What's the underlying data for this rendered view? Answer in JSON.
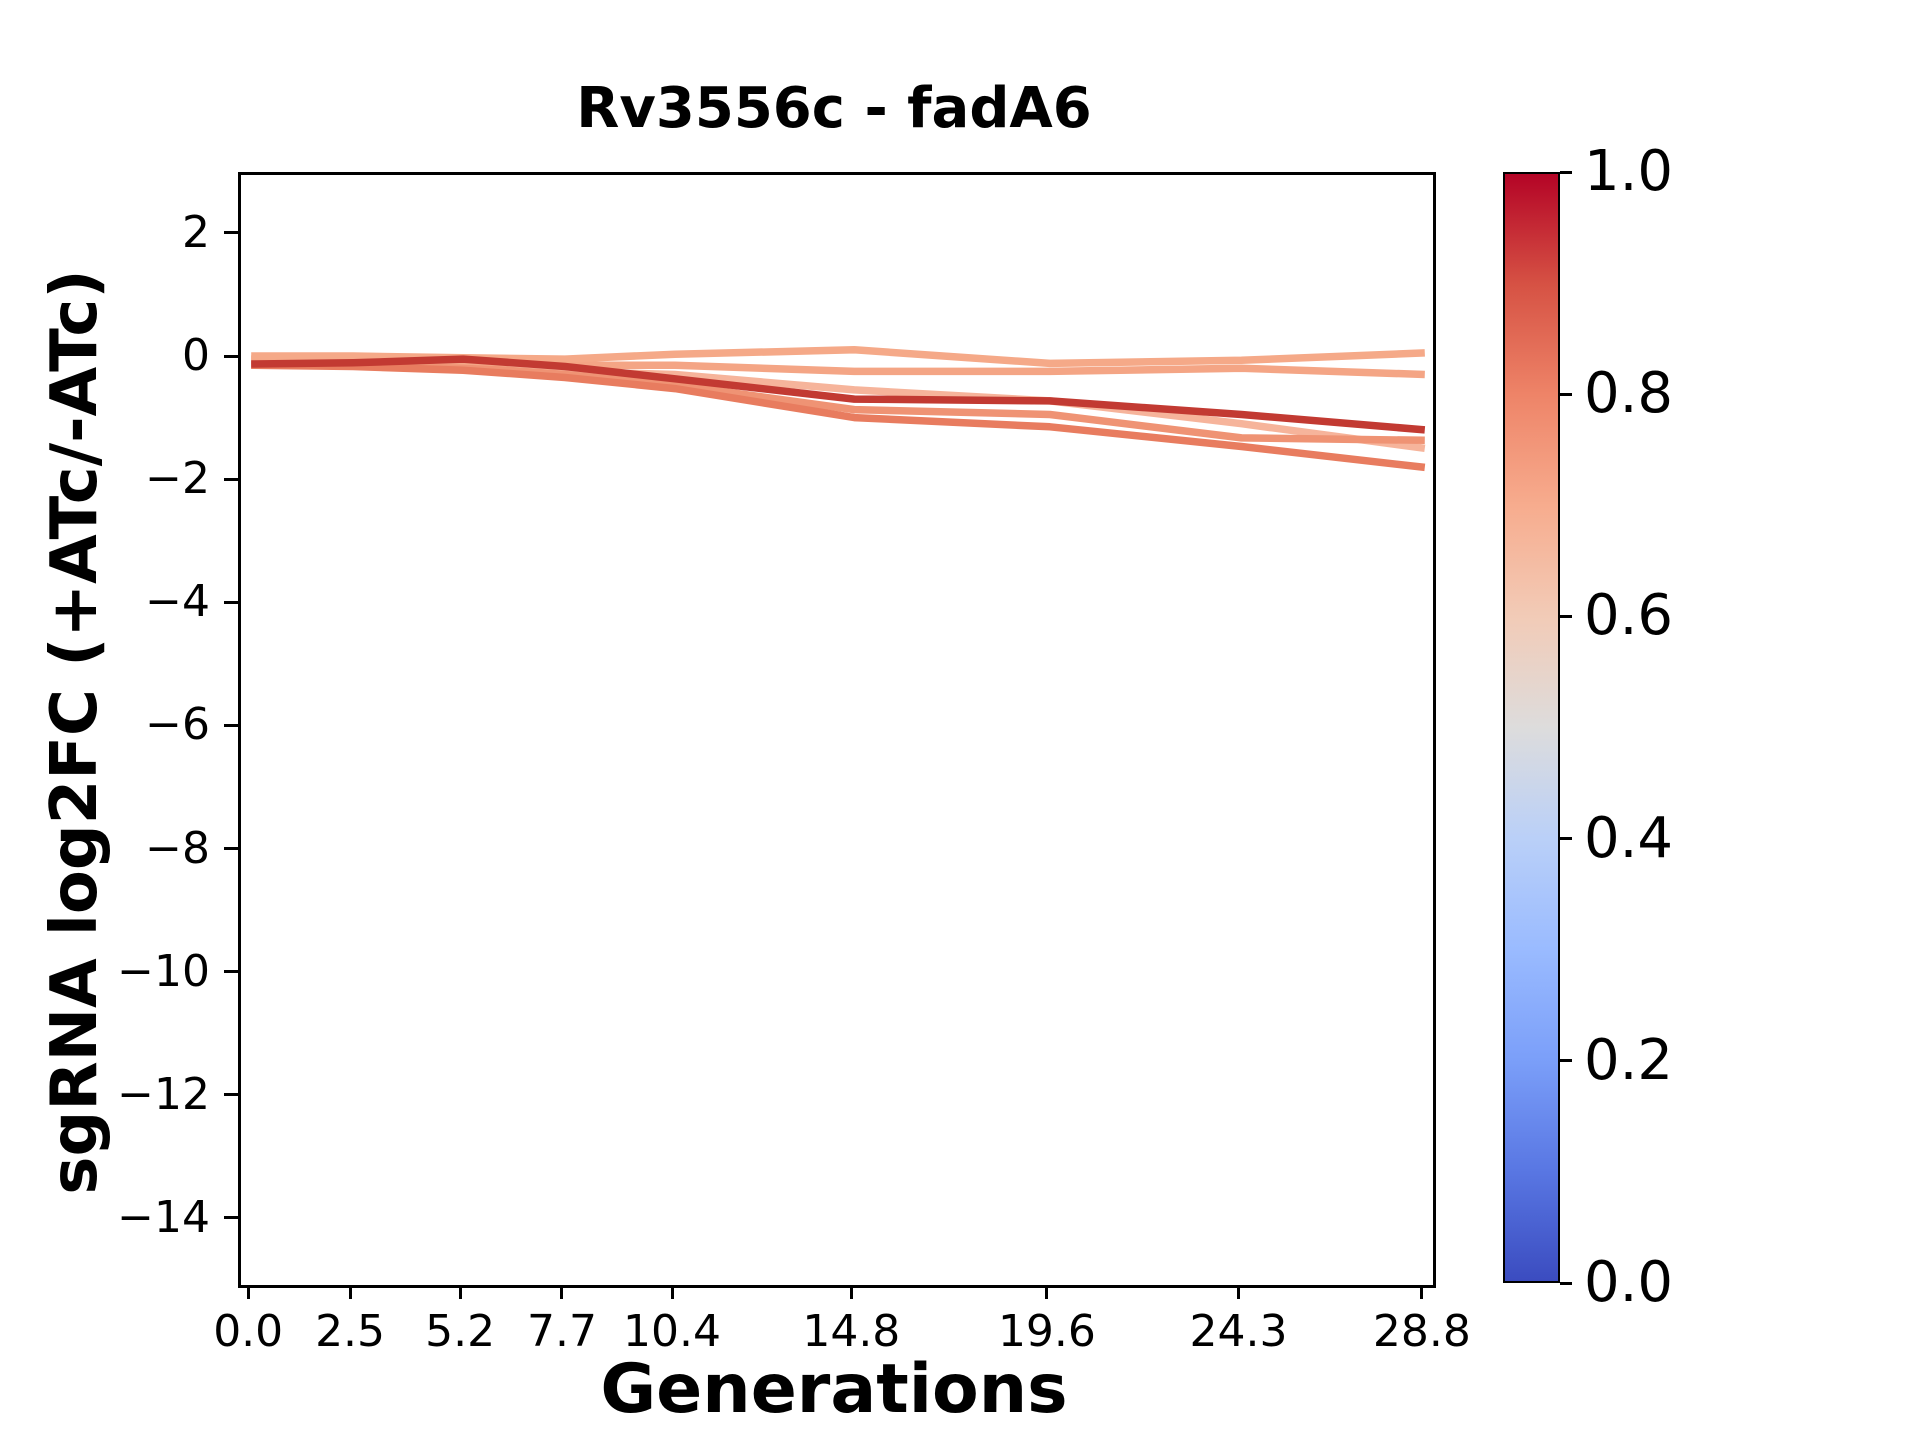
{
  "title": "Rv3556c - fadA6",
  "xlabel": "Generations",
  "ylabel": "sgRNA log2FC (+ATc/-ATc)",
  "chart_data": {
    "type": "line",
    "title": "Rv3556c - fadA6",
    "xlabel": "Generations",
    "ylabel": "sgRNA log2FC (+ATc/-ATc)",
    "x": [
      0.0,
      2.5,
      5.2,
      7.7,
      10.4,
      14.8,
      19.6,
      24.3,
      28.8
    ],
    "x_tick_labels": [
      "0.0",
      "2.5",
      "5.2",
      "7.7",
      "10.4",
      "14.8",
      "19.6",
      "24.3",
      "28.8"
    ],
    "y_ticks": [
      2,
      0,
      -2,
      -4,
      -6,
      -8,
      -10,
      -12,
      -14
    ],
    "y_tick_labels": [
      "2",
      "0",
      "−2",
      "−4",
      "−6",
      "−8",
      "−10",
      "−12",
      "−14"
    ],
    "xlim": [
      -0.25,
      29.0
    ],
    "ylim": [
      -15.04,
      2.99
    ],
    "grid": false,
    "legend": "none",
    "line_width": 7.5,
    "series": [
      {
        "color": "#f6b49b",
        "values": [
          -0.02,
          -0.04,
          -0.1,
          -0.2,
          -0.25,
          -0.5,
          -0.68,
          -1.05,
          -1.45
        ]
      },
      {
        "color": "#ef9374",
        "values": [
          -0.1,
          -0.08,
          -0.13,
          -0.25,
          -0.42,
          -0.82,
          -0.9,
          -1.28,
          -1.32
        ]
      },
      {
        "color": "#e87c5f",
        "values": [
          -0.1,
          -0.12,
          -0.18,
          -0.3,
          -0.48,
          -0.95,
          -1.1,
          -1.42,
          -1.76
        ]
      },
      {
        "color": "#f4a585",
        "values": [
          0.0,
          0.02,
          -0.03,
          -0.1,
          -0.1,
          -0.2,
          -0.2,
          -0.15,
          -0.25
        ]
      },
      {
        "color": "#f5a988",
        "values": [
          0.05,
          0.05,
          0.02,
          0.0,
          0.08,
          0.15,
          -0.07,
          -0.02,
          0.1
        ]
      },
      {
        "color": "#c23a32",
        "values": [
          -0.08,
          -0.06,
          0.0,
          -0.12,
          -0.32,
          -0.65,
          -0.68,
          -0.9,
          -1.15
        ]
      }
    ],
    "colorbar": {
      "min": 0.0,
      "max": 1.0,
      "tick_values": [
        1.0,
        0.8,
        0.6,
        0.4,
        0.2,
        0.0
      ],
      "tick_labels": [
        "1.0",
        "0.8",
        "0.6",
        "0.4",
        "0.2",
        "0.0"
      ],
      "cmap": "coolwarm",
      "gradient_stops": [
        {
          "pos": 0,
          "color": "#3b4cc0"
        },
        {
          "pos": 10,
          "color": "#5977e3"
        },
        {
          "pos": 20,
          "color": "#7b9ff9"
        },
        {
          "pos": 30,
          "color": "#9abbff"
        },
        {
          "pos": 40,
          "color": "#bad0f8"
        },
        {
          "pos": 50,
          "color": "#dddcdc"
        },
        {
          "pos": 60,
          "color": "#f2cbb7"
        },
        {
          "pos": 70,
          "color": "#f7ac8e"
        },
        {
          "pos": 80,
          "color": "#ee8468"
        },
        {
          "pos": 90,
          "color": "#d65244"
        },
        {
          "pos": 100,
          "color": "#b40426"
        }
      ]
    }
  }
}
